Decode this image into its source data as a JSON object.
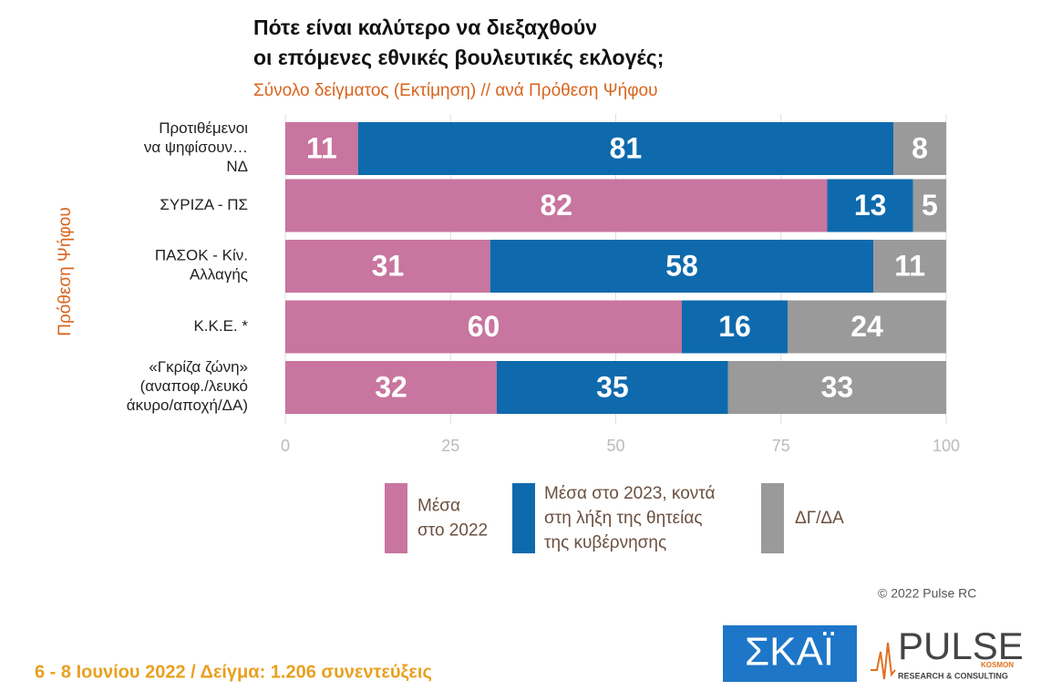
{
  "chart_data": {
    "type": "stacked-barh",
    "title": "Πότε είναι καλύτερο να διεξαχθούν\nοι επόμενες εθνικές βουλευτικές εκλογές;",
    "subtitle": "Σύνολο δείγματος   (Εκτίμηση) // ανά Πρόθεση Ψήφου",
    "y_label": "Πρόθεση Ψήφου",
    "categories": [
      "Προτιθέμενοι\nνα ψηφίσουν…\nΝΔ",
      "ΣΥΡΙΖΑ - ΠΣ",
      "ΠΑΣΟΚ - Κίν.\nΑλλαγής",
      "Κ.Κ.Ε. *",
      "«Γκρίζα ζώνη»\n(αναποφ./λευκό\nάκυρο/αποχή/ΔΑ)"
    ],
    "series": [
      {
        "name": "Μέσα\nστο 2022",
        "color": "#c8759f",
        "values": [
          11,
          82,
          31,
          60,
          32
        ]
      },
      {
        "name": "Μέσα στο 2023, κοντά\nστη λήξη της θητείας\nτης κυβέρνησης",
        "color": "#0e6aad",
        "values": [
          81,
          13,
          58,
          16,
          35
        ]
      },
      {
        "name": "ΔΓ/ΔΑ",
        "color": "#9a9a9a",
        "values": [
          8,
          5,
          11,
          24,
          33
        ]
      }
    ],
    "xlim": [
      0,
      100
    ],
    "xticks": [
      0,
      25,
      50,
      75,
      100
    ],
    "grid": true
  },
  "footer": "6 - 8  Ιουνίου  2022  /  Δείγμα:  1.206 συνεντεύξεις",
  "copyright": "© 2022 Pulse RC",
  "logos": {
    "skai": "ΣΚΑΪ",
    "pulse": "PULSE",
    "pulse_sub": "RESEARCH & CONSULTING",
    "pulse_tag": "KOSMON"
  }
}
